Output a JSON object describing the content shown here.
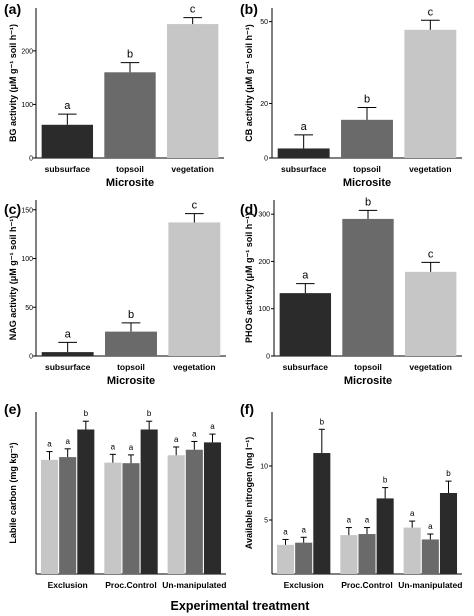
{
  "figure": {
    "bottom_label": "Experimental treatment"
  },
  "colors": {
    "dark": "#2b2b2b",
    "mid": "#6a6a6a",
    "light": "#c6c6c6",
    "axis": "#000000"
  },
  "chart_data": [
    {
      "panel": "(a)",
      "type": "bar",
      "categories": [
        "subsurface",
        "topsoil",
        "vegetation"
      ],
      "values": [
        62,
        160,
        250
      ],
      "errors": [
        20,
        18,
        12
      ],
      "sig_letters": [
        "a",
        "b",
        "c"
      ],
      "bar_colors": [
        "dark",
        "mid",
        "light"
      ],
      "xlabel": "Microsite",
      "ylabel": "BG activity (μM g⁻¹ soil h⁻¹)",
      "ylim": [
        0,
        280
      ],
      "yticks": [
        0,
        100,
        200
      ],
      "grid": false
    },
    {
      "panel": "(b)",
      "type": "bar",
      "categories": [
        "subsurface",
        "topsoil",
        "vegetation"
      ],
      "values": [
        3.5,
        14,
        47
      ],
      "errors": [
        5,
        4.5,
        3.5
      ],
      "sig_letters": [
        "a",
        "b",
        "c"
      ],
      "bar_colors": [
        "dark",
        "mid",
        "light"
      ],
      "xlabel": "Microsite",
      "ylabel": "CB activity (μM g⁻¹ soil h⁻¹)",
      "ylim": [
        0,
        55
      ],
      "yticks": [
        0,
        20,
        50
      ],
      "grid": false
    },
    {
      "panel": "(c)",
      "type": "bar",
      "categories": [
        "subsurface",
        "topsoil",
        "vegetation"
      ],
      "values": [
        4,
        25,
        137
      ],
      "errors": [
        10,
        9,
        9
      ],
      "sig_letters": [
        "a",
        "b",
        "c"
      ],
      "bar_colors": [
        "dark",
        "mid",
        "light"
      ],
      "xlabel": "Microsite",
      "ylabel": "NAG activity (μM g⁻¹ soil h⁻¹)",
      "ylim": [
        0,
        160
      ],
      "yticks": [
        0,
        50,
        100,
        150
      ],
      "grid": false
    },
    {
      "panel": "(d)",
      "type": "bar",
      "categories": [
        "subsurface",
        "topsoil",
        "vegetation"
      ],
      "values": [
        133,
        290,
        178
      ],
      "errors": [
        20,
        18,
        20
      ],
      "sig_letters": [
        "a",
        "b",
        "c"
      ],
      "bar_colors": [
        "dark",
        "mid",
        "light"
      ],
      "xlabel": "Microsite",
      "ylabel": "PHOS activity (μM g⁻¹ soil h⁻¹)",
      "ylim": [
        0,
        330
      ],
      "yticks": [
        0,
        100,
        200,
        300
      ],
      "grid": false
    },
    {
      "panel": "(e)",
      "type": "bar",
      "grouped": true,
      "categories": [
        "Exclusion",
        "Proc.Control",
        "Un-manipulated"
      ],
      "series": [
        {
          "values": [
            620,
            605,
            645
          ],
          "errors": [
            45,
            45,
            45
          ],
          "sig_letters": [
            "a",
            "a",
            "a"
          ],
          "color": "light"
        },
        {
          "values": [
            635,
            602,
            675
          ],
          "errors": [
            45,
            45,
            45
          ],
          "sig_letters": [
            "a",
            "a",
            "a"
          ],
          "color": "mid"
        },
        {
          "values": [
            785,
            785,
            715
          ],
          "errors": [
            45,
            45,
            45
          ],
          "sig_letters": [
            "b",
            "b",
            "a"
          ],
          "color": "dark"
        }
      ],
      "ylabel": "Labile carbon (mg kg⁻¹)",
      "ylim": [
        0,
        880
      ],
      "yticks": [],
      "grid": false
    },
    {
      "panel": "(f)",
      "type": "bar",
      "grouped": true,
      "categories": [
        "Exclusion",
        "Proc.Control",
        "Un-manipulated"
      ],
      "series": [
        {
          "values": [
            2.7,
            3.6,
            4.3
          ],
          "errors": [
            0.5,
            0.7,
            0.6
          ],
          "sig_letters": [
            "a",
            "a",
            "a"
          ],
          "color": "light"
        },
        {
          "values": [
            2.9,
            3.7,
            3.2
          ],
          "errors": [
            0.5,
            0.6,
            0.5
          ],
          "sig_letters": [
            "a",
            "a",
            "a"
          ],
          "color": "mid"
        },
        {
          "values": [
            11.2,
            7.0,
            7.5
          ],
          "errors": [
            2.2,
            1.0,
            1.1
          ],
          "sig_letters": [
            "b",
            "b",
            "b"
          ],
          "color": "dark"
        }
      ],
      "ylabel": "Available nitrogen (mg l⁻¹)",
      "ylim": [
        0,
        15
      ],
      "yticks": [
        5,
        10
      ],
      "grid": false
    }
  ]
}
